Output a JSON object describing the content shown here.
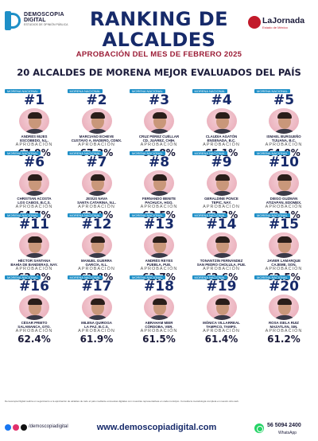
{
  "brand": {
    "name_line1": "DEMOSCOPIA",
    "name_line2": "DIGITAL",
    "tagline": "ESTUDIOS DE OPINIÓN PÚBLICA"
  },
  "partner": {
    "name": "LaJornada",
    "sub": "Estado de México"
  },
  "header": {
    "title_line1": "RANKING DE",
    "title_line2": "ALCALDES",
    "subtitle": "APROBACIÓN DEL MES DE FEBRERO 2025"
  },
  "section_title": "20 ALCALDES DE MORENA MEJOR EVALUADOS DEL PAÍS",
  "card_tag": "MORENA NACIONAL",
  "approval_label": "APROBACIÓN",
  "mayors": [
    {
      "rank": "#1",
      "name": "ANDRÉS MIJES\nESCOBEDO, N.L.",
      "approval": "67.9%"
    },
    {
      "rank": "#2",
      "name": "MARCIANO ECHEVE\nCUSTAVO A. MADERO, CDMX.",
      "approval": "67.3%"
    },
    {
      "rank": "#3",
      "name": "CRUZ PÉREZ CUÉLLAR\nCD. JUÁREZ, CHIH.",
      "approval": "65.8%"
    },
    {
      "rank": "#4",
      "name": "CLAUDIA AGATÓN\nENSENADA, B.C.",
      "approval": "65.1%"
    },
    {
      "rank": "#5",
      "name": "ISMAEL BURGUEÑO\nTIJUANA, B.C.",
      "approval": "64.8%"
    },
    {
      "rank": "#6",
      "name": "CHRISTIAN ACOSTA\nLOS CABOS, B.C.S.",
      "approval": "64.7%"
    },
    {
      "rank": "#7",
      "name": "JESÚS NAVA\nSANTA CATARINA, N.L.",
      "approval": "63.9%"
    },
    {
      "rank": "#8",
      "name": "FERNANDO BENITE\nPACHUCA, HGO.",
      "approval": "63.5%"
    },
    {
      "rank": "#9",
      "name": "GERALDINE PONCE\nTEPIC, NAY.",
      "approval": "63.3%"
    },
    {
      "rank": "#10",
      "name": "DIEGO GUZMÁN\nATIZAPÁN, EDOMEX.",
      "approval": "63.1%"
    },
    {
      "rank": "#11",
      "name": "HÉCTOR SANTANA\nBAHÍA DE BANDERAS, NAY.",
      "approval": "62.9%"
    },
    {
      "rank": "#12",
      "name": "MANUEL GUERRA\nGARCÍA, N.L.",
      "approval": "62.8%"
    },
    {
      "rank": "#13",
      "name": "ANDRÉS REYES\nPUEBLA, PUE.",
      "approval": "62.7%"
    },
    {
      "rank": "#14",
      "name": "TONANTZIN FERNÁNDEZ\nSAN PEDRO CHOLULA, PUE.",
      "approval": "62.6%"
    },
    {
      "rank": "#15",
      "name": "JAVIER LAMARQUE\nCAJEME, SON.",
      "approval": "62.5%"
    },
    {
      "rank": "#16",
      "name": "CÉSAR PRIETO\nSALAMANCA, GTO.",
      "approval": "62.4%"
    },
    {
      "rank": "#17",
      "name": "MILENA QUIROGA\nLA PAZ, B.C.S.",
      "approval": "61.9%"
    },
    {
      "rank": "#18",
      "name": "ABRAHAM MIER\nCÓRDOBA, VER.",
      "approval": "61.5%"
    },
    {
      "rank": "#19",
      "name": "MÓNICA VILLARREAL\nTAMPICO, TAMPS.",
      "approval": "61.4%"
    },
    {
      "rank": "#20",
      "name": "ROSA ISELA RUIZ\nMAZATLÁN, SIN.",
      "approval": "61.2%"
    }
  ],
  "footnote": "Demoscopia Digital realiza un seguimiento a la aprobación de alcaldes de todo el país mediante encuestas digitales con muestras representativas en cada municipio. Consulta la metodología completa en nuestro sitio web.",
  "footer": {
    "handle": "/demoscopiadigital",
    "website": "www.demoscopiadigital.com",
    "phone": "56 5094 2400",
    "whatsapp": "WhatsApp"
  },
  "colors": {
    "navy": "#162a6a",
    "accent_red": "#9b1c36",
    "brand_blue": "#1e8fc7",
    "circle_pink": "#e7a5b3"
  }
}
